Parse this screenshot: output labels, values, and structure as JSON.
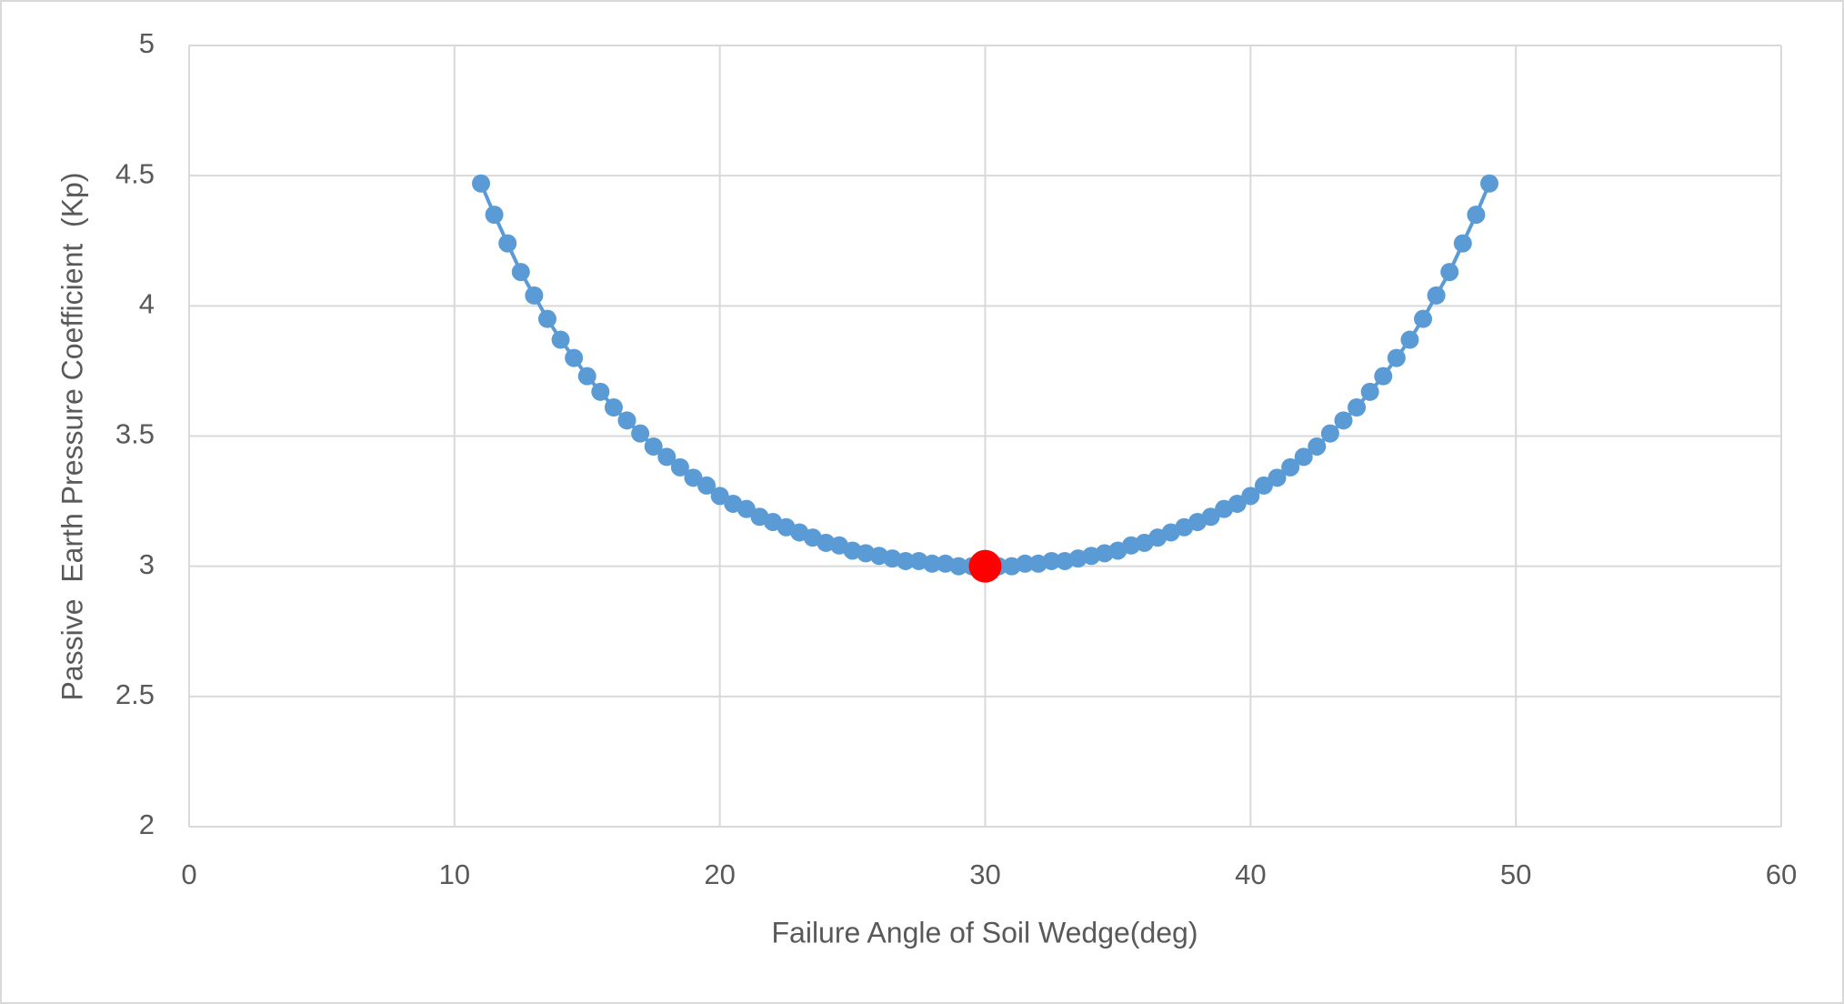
{
  "chart_data": {
    "type": "scatter",
    "x_label": "Failure Angle of Soil Wedge(deg)",
    "y_label": "Passive  Earth Pressure Coefficient  (Kp)",
    "xlim": [
      0,
      60
    ],
    "xticks": [
      0,
      10,
      20,
      30,
      40,
      50,
      60
    ],
    "ylim": [
      2,
      5
    ],
    "yticks": [
      2,
      2.5,
      3,
      3.5,
      4,
      4.5,
      5
    ],
    "grid": true,
    "series": [
      {
        "color": "#5b9bd5",
        "line": true,
        "x": [
          11,
          11.5,
          12,
          12.5,
          13,
          13.5,
          14,
          14.5,
          15,
          15.5,
          16,
          16.5,
          17,
          17.5,
          18,
          18.5,
          19,
          19.5,
          20,
          20.5,
          21,
          21.5,
          22,
          22.5,
          23,
          23.5,
          24,
          24.5,
          25,
          25.5,
          26,
          26.5,
          27,
          27.5,
          28,
          28.5,
          29,
          29.5,
          30,
          30.5,
          31,
          31.5,
          32,
          32.5,
          33,
          33.5,
          34,
          34.5,
          35,
          35.5,
          36,
          36.5,
          37,
          37.5,
          38,
          38.5,
          39,
          39.5,
          40,
          40.5,
          41,
          41.5,
          42,
          42.5,
          43,
          43.5,
          44,
          44.5,
          45,
          45.5,
          46,
          46.5,
          47,
          47.5,
          48,
          48.5,
          49
        ],
        "values": [
          4.47,
          4.35,
          4.24,
          4.13,
          4.04,
          3.95,
          3.87,
          3.8,
          3.73,
          3.67,
          3.61,
          3.56,
          3.51,
          3.46,
          3.42,
          3.38,
          3.34,
          3.31,
          3.27,
          3.24,
          3.22,
          3.19,
          3.17,
          3.15,
          3.13,
          3.11,
          3.09,
          3.08,
          3.06,
          3.05,
          3.04,
          3.03,
          3.02,
          3.02,
          3.01,
          3.01,
          3,
          3,
          3,
          3,
          3,
          3.01,
          3.01,
          3.02,
          3.02,
          3.03,
          3.04,
          3.05,
          3.06,
          3.08,
          3.09,
          3.11,
          3.13,
          3.15,
          3.17,
          3.19,
          3.22,
          3.24,
          3.27,
          3.31,
          3.34,
          3.38,
          3.42,
          3.46,
          3.51,
          3.56,
          3.61,
          3.67,
          3.73,
          3.8,
          3.87,
          3.95,
          4.04,
          4.13,
          4.24,
          4.35,
          4.47
        ]
      },
      {
        "color": "#ff0000",
        "line": false,
        "x": [
          30
        ],
        "values": [
          3
        ]
      }
    ]
  }
}
